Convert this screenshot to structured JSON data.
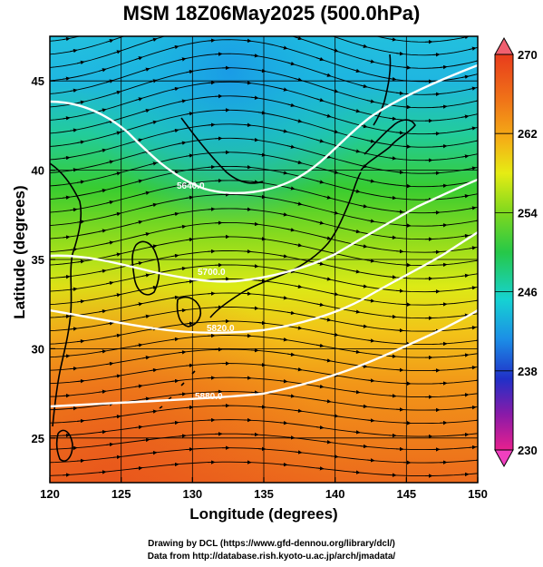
{
  "title": "MSM 18Z06May2025 (500.0hPa)",
  "xlabel": "Longitude (degrees)",
  "ylabel": "Latitude  (degrees)",
  "credits": [
    "Drawing by DCL (https://www.gfd-dennou.org/library/dcl/)",
    "Data from http://database.rish.kyoto-u.ac.jp/arch/jmadata/"
  ],
  "map": {
    "lon_range": [
      120,
      150
    ],
    "lat_range": [
      22.5,
      47.5
    ],
    "x_ticks": [
      "120",
      "125",
      "130",
      "135",
      "140",
      "145",
      "150"
    ],
    "y_ticks": [
      "25",
      "30",
      "35",
      "40",
      "45"
    ],
    "grid": "on",
    "field": "temperature shading with streamlines and height contours",
    "contour_color": "#ffffff",
    "contour_labels": [
      "5640.0",
      "5820.0",
      "5700.0",
      "5880.0"
    ]
  },
  "colorbar": {
    "labels": [
      "270",
      "262",
      "254",
      "246",
      "238",
      "230"
    ],
    "range": [
      230,
      270
    ],
    "colors": [
      "#e8208e",
      "#8a1aa8",
      "#2030c8",
      "#1c8ee6",
      "#16d2d2",
      "#26c848",
      "#7ed81e",
      "#e6ec14",
      "#f4b216",
      "#f07618",
      "#e83c1c"
    ]
  }
}
